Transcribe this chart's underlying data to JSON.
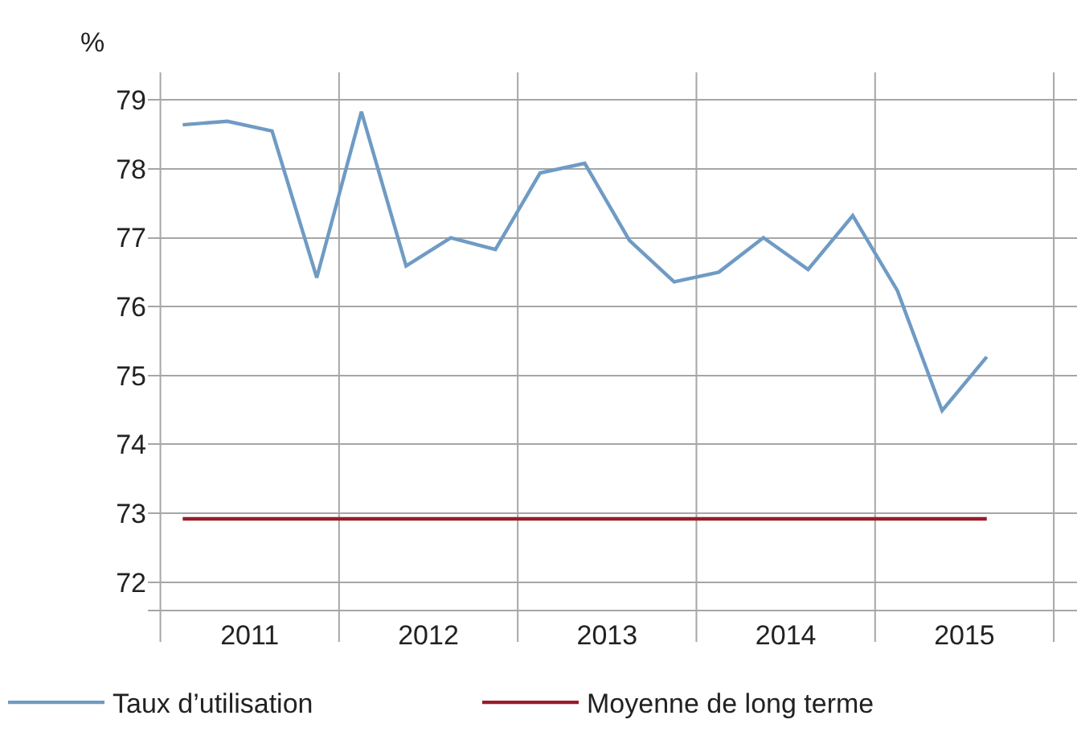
{
  "chart_data": {
    "type": "line",
    "ylabel": "%",
    "x": [
      2011.125,
      2011.375,
      2011.625,
      2011.875,
      2012.125,
      2012.375,
      2012.625,
      2012.875,
      2013.125,
      2013.375,
      2013.625,
      2013.875,
      2014.125,
      2014.375,
      2014.625,
      2014.875,
      2015.125,
      2015.375,
      2015.625
    ],
    "series": [
      {
        "name": "Taux d’utilisation",
        "color": "#6f9bc4",
        "values": [
          78.64,
          78.69,
          78.55,
          76.42,
          78.83,
          76.59,
          77.0,
          76.83,
          77.94,
          78.08,
          76.96,
          76.36,
          76.5,
          77.0,
          76.54,
          77.32,
          76.23,
          74.49,
          75.27
        ]
      },
      {
        "name": "Moyenne de long terme",
        "color": "#9b1b2a",
        "values": [
          72.92,
          72.92,
          72.92,
          72.92,
          72.92,
          72.92,
          72.92,
          72.92,
          72.92,
          72.92,
          72.92,
          72.92,
          72.92,
          72.92,
          72.92,
          72.92,
          72.92,
          72.92,
          72.92
        ]
      }
    ],
    "xlim": [
      2010.93,
      2016.13
    ],
    "xticks": [
      {
        "value": 2011,
        "label": null
      },
      {
        "value": 2011.5,
        "label": "2011"
      },
      {
        "value": 2012,
        "label": null
      },
      {
        "value": 2012.5,
        "label": "2012"
      },
      {
        "value": 2013,
        "label": null
      },
      {
        "value": 2013.5,
        "label": "2013"
      },
      {
        "value": 2014,
        "label": null
      },
      {
        "value": 2014.5,
        "label": "2014"
      },
      {
        "value": 2015,
        "label": null
      },
      {
        "value": 2015.5,
        "label": "2015"
      },
      {
        "value": 2016,
        "label": null
      }
    ],
    "ylim": [
      71.6,
      79.4
    ],
    "yticks": [
      72,
      73,
      74,
      75,
      76,
      77,
      78,
      79
    ],
    "grid": true,
    "legend": "bottom",
    "marker": "none",
    "line_style": "solid"
  }
}
